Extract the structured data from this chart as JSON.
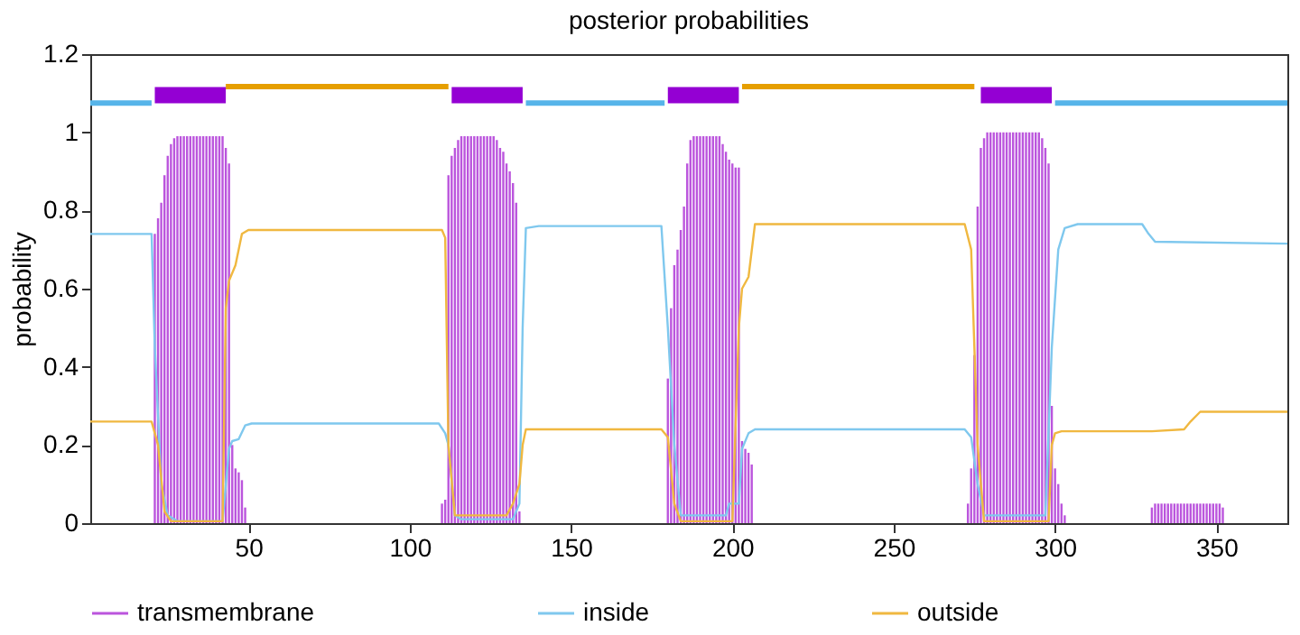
{
  "chart_data": {
    "type": "line",
    "title": "posterior probabilities",
    "ylabel": "probability",
    "xlim": [
      1,
      372
    ],
    "ylim": [
      0,
      1.2
    ],
    "xticks": [
      50,
      100,
      150,
      200,
      250,
      300,
      350
    ],
    "yticks": [
      0,
      0.2,
      0.4,
      0.6,
      0.8,
      1,
      1.2
    ],
    "legend": "bottom",
    "series": [
      {
        "name": "transmembrane",
        "type": "bar",
        "color": "#bb55dd",
        "x": [
          21,
          22,
          23,
          24,
          25,
          26,
          27,
          28,
          29,
          30,
          31,
          32,
          33,
          34,
          35,
          36,
          37,
          38,
          39,
          40,
          41,
          42,
          43,
          44,
          45,
          46,
          47,
          48,
          49,
          110,
          111,
          112,
          113,
          114,
          115,
          116,
          117,
          118,
          119,
          120,
          121,
          122,
          123,
          124,
          125,
          126,
          127,
          128,
          129,
          130,
          131,
          132,
          133,
          134,
          180,
          181,
          182,
          183,
          184,
          185,
          186,
          187,
          188,
          189,
          190,
          191,
          192,
          193,
          194,
          195,
          196,
          197,
          198,
          199,
          200,
          201,
          202,
          203,
          204,
          205,
          206,
          273,
          274,
          275,
          276,
          277,
          278,
          279,
          280,
          281,
          282,
          283,
          284,
          285,
          286,
          287,
          288,
          289,
          290,
          291,
          292,
          293,
          294,
          295,
          296,
          297,
          298,
          299,
          300,
          301,
          302,
          303,
          330,
          331,
          332,
          333,
          334,
          335,
          336,
          337,
          338,
          339,
          340,
          341,
          342,
          343,
          344,
          345,
          346,
          347,
          348,
          349,
          350,
          351,
          352
        ],
        "values": [
          0.74,
          0.78,
          0.82,
          0.89,
          0.94,
          0.97,
          0.985,
          0.99,
          0.99,
          0.99,
          0.99,
          0.99,
          0.99,
          0.99,
          0.99,
          0.99,
          0.99,
          0.99,
          0.99,
          0.99,
          0.99,
          0.99,
          0.96,
          0.92,
          0.2,
          0.14,
          0.13,
          0.11,
          0.04,
          0.05,
          0.06,
          0.89,
          0.94,
          0.96,
          0.98,
          0.99,
          0.99,
          0.99,
          0.99,
          0.99,
          0.99,
          0.99,
          0.99,
          0.99,
          0.99,
          0.99,
          0.98,
          0.96,
          0.95,
          0.92,
          0.9,
          0.87,
          0.82,
          0.03,
          0.37,
          0.55,
          0.66,
          0.7,
          0.75,
          0.81,
          0.92,
          0.98,
          0.99,
          0.99,
          0.99,
          0.99,
          0.99,
          0.99,
          0.99,
          0.99,
          0.99,
          0.97,
          0.95,
          0.93,
          0.92,
          0.91,
          0.91,
          0.21,
          0.19,
          0.18,
          0.15,
          0.05,
          0.14,
          0.43,
          0.81,
          0.96,
          0.985,
          1.0,
          1.0,
          1.0,
          1.0,
          1.0,
          1.0,
          1.0,
          1.0,
          1.0,
          1.0,
          1.0,
          1.0,
          1.0,
          1.0,
          1.0,
          1.0,
          1.0,
          0.985,
          0.96,
          0.92,
          0.3,
          0.14,
          0.1,
          0.05,
          0.02,
          0.04,
          0.05,
          0.05,
          0.05,
          0.05,
          0.05,
          0.05,
          0.05,
          0.05,
          0.05,
          0.05,
          0.05,
          0.05,
          0.05,
          0.05,
          0.05,
          0.05,
          0.05,
          0.05,
          0.05,
          0.05,
          0.05,
          0.04
        ]
      },
      {
        "name": "inside",
        "color": "#7fc8ee",
        "x": [
          1,
          20,
          21,
          23,
          25,
          28,
          42,
          44,
          45,
          47,
          49,
          51,
          109,
          111,
          112,
          114,
          116,
          132,
          134,
          135,
          136,
          140,
          178,
          180,
          182,
          184,
          198,
          199,
          202,
          203,
          205,
          207,
          272,
          274,
          276,
          278,
          297,
          299,
          301,
          303,
          307,
          327,
          329,
          331,
          372
        ],
        "values": [
          0.74,
          0.74,
          0.45,
          0.1,
          0.02,
          0.005,
          0.005,
          0.19,
          0.21,
          0.215,
          0.25,
          0.255,
          0.255,
          0.23,
          0.2,
          0.02,
          0.01,
          0.01,
          0.05,
          0.5,
          0.755,
          0.76,
          0.76,
          0.5,
          0.2,
          0.02,
          0.02,
          0.05,
          0.05,
          0.19,
          0.23,
          0.24,
          0.24,
          0.22,
          0.1,
          0.02,
          0.02,
          0.45,
          0.7,
          0.755,
          0.765,
          0.765,
          0.74,
          0.72,
          0.715
        ]
      },
      {
        "name": "outside",
        "color": "#f0b840",
        "x": [
          1,
          20,
          22,
          24,
          26,
          42,
          43,
          44,
          46,
          48,
          50,
          110,
          111,
          112,
          114,
          130,
          132,
          134,
          135,
          136,
          178,
          180,
          182,
          184,
          200,
          202,
          203,
          205,
          207,
          272,
          274,
          276,
          278,
          298,
          299,
          300,
          302,
          330,
          340,
          342,
          345,
          372
        ],
        "values": [
          0.26,
          0.26,
          0.2,
          0.03,
          0.005,
          0.005,
          0.55,
          0.62,
          0.66,
          0.74,
          0.75,
          0.75,
          0.73,
          0.2,
          0.02,
          0.02,
          0.05,
          0.1,
          0.2,
          0.24,
          0.24,
          0.22,
          0.05,
          0.005,
          0.005,
          0.5,
          0.6,
          0.63,
          0.765,
          0.765,
          0.7,
          0.2,
          0.005,
          0.005,
          0.2,
          0.23,
          0.235,
          0.235,
          0.24,
          0.26,
          0.285,
          0.285
        ]
      },
      {
        "color": "#56b4e9",
        "x": [
          1,
          20,
          21,
          136,
          179,
          180,
          300,
          372
        ],
        "values": [
          1.075,
          1.075,
          null,
          1.075,
          1.075,
          null,
          1.075,
          1.075
        ]
      },
      {
        "color": "#e69f00",
        "x": [
          43,
          112,
          113,
          203,
          275
        ],
        "values": [
          1.117,
          1.117,
          null,
          1.117,
          1.117
        ]
      },
      {
        "type": "step",
        "color": "#9400d3",
        "x": [
          21,
          43,
          44,
          113,
          135,
          136,
          180,
          202,
          203,
          277,
          299
        ],
        "values": [
          1.095,
          1.095,
          null,
          1.095,
          1.095,
          null,
          1.095,
          1.095,
          null,
          1.095,
          1.095
        ]
      }
    ]
  }
}
